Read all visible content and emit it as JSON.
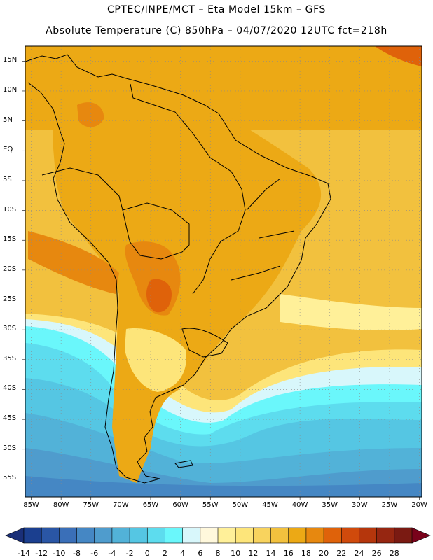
{
  "header": {
    "line1": "CPTEC/INPE/MCT –  Eta Model 15km – GFS",
    "line2": "Absolute Temperature (C) 850hPa – 04/07/2020 12UTC fct=218h"
  },
  "axes": {
    "lat_labels": [
      "15N",
      "10N",
      "5N",
      "EQ",
      "5S",
      "10S",
      "15S",
      "20S",
      "25S",
      "30S",
      "35S",
      "40S",
      "45S",
      "50S",
      "55S"
    ],
    "lon_labels": [
      "85W",
      "80W",
      "75W",
      "70W",
      "65W",
      "60W",
      "55W",
      "50W",
      "45W",
      "40W",
      "35W",
      "30W",
      "25W",
      "20W"
    ],
    "lat_values": [
      15,
      10,
      5,
      0,
      -5,
      -10,
      -15,
      -20,
      -25,
      -30,
      -35,
      -40,
      -45,
      -50,
      -55
    ],
    "lon_values": [
      -85,
      -80,
      -75,
      -70,
      -65,
      -60,
      -55,
      -50,
      -45,
      -40,
      -35,
      -30,
      -25,
      -20
    ],
    "grid": "dotted"
  },
  "colorbar": {
    "labels": [
      "-14",
      "-12",
      "-10",
      "-8",
      "-6",
      "-4",
      "-2",
      "0",
      "2",
      "4",
      "6",
      "8",
      "10",
      "12",
      "14",
      "16",
      "18",
      "20",
      "22",
      "24",
      "26",
      "28"
    ],
    "colors": [
      "#1b3f8f",
      "#2a56a5",
      "#3a6fb8",
      "#4587c4",
      "#4f9ccd",
      "#52b2d8",
      "#55c6e3",
      "#5ddcee",
      "#6af7fb",
      "#d8f7fb",
      "#fff8dc",
      "#fff099",
      "#fde57a",
      "#f8d35e",
      "#f2c13e",
      "#eca915",
      "#e7880f",
      "#df620a",
      "#d04a0c",
      "#b5360c",
      "#962611",
      "#7a1a12"
    ],
    "lower_arrow_color": "#1a2f78",
    "upper_arrow_color": "#79021b"
  }
}
